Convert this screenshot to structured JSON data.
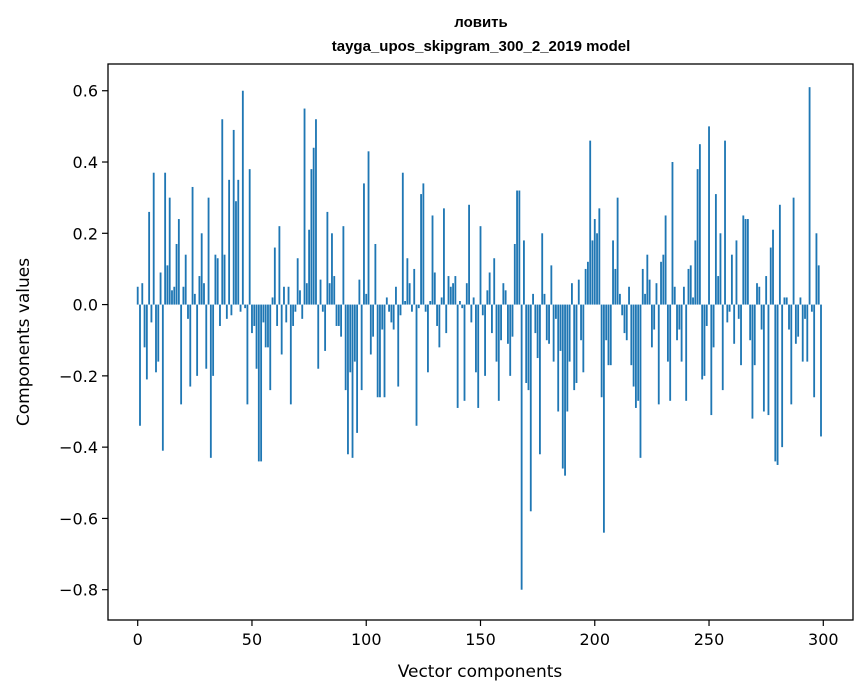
{
  "chart_data": {
    "type": "bar",
    "title": "ловить",
    "subtitle": "tayga_upos_skipgram_300_2_2019 model",
    "xlabel": "Vector components",
    "ylabel": "Components values",
    "xlim": [
      -13,
      313
    ],
    "ylim": [
      -0.885,
      0.675
    ],
    "xticks": [
      0,
      50,
      100,
      150,
      200,
      250,
      300
    ],
    "xtick_labels": [
      "0",
      "50",
      "100",
      "150",
      "200",
      "250",
      "300"
    ],
    "yticks": [
      0.6,
      0.4,
      0.2,
      0.0,
      -0.2,
      -0.4,
      -0.6,
      -0.8
    ],
    "ytick_labels": [
      "0.6",
      "0.4",
      "0.2",
      "0.0",
      "−0.2",
      "−0.4",
      "−0.6",
      "−0.8"
    ],
    "bar_color": "#1f77b4",
    "grid": false,
    "values": [
      0.05,
      -0.34,
      0.06,
      -0.12,
      -0.21,
      0.26,
      -0.05,
      0.37,
      -0.19,
      -0.16,
      0.09,
      -0.41,
      0.37,
      0.11,
      0.3,
      0.04,
      0.05,
      0.17,
      0.24,
      -0.28,
      0.05,
      0.14,
      -0.04,
      -0.23,
      0.33,
      0.03,
      -0.2,
      0.08,
      0.2,
      0.06,
      -0.18,
      0.3,
      -0.43,
      -0.2,
      0.14,
      0.13,
      -0.06,
      0.52,
      0.14,
      -0.04,
      0.35,
      -0.03,
      0.49,
      0.29,
      0.35,
      -0.02,
      0.6,
      -0.01,
      -0.28,
      0.38,
      -0.08,
      -0.06,
      -0.18,
      -0.44,
      -0.44,
      -0.05,
      -0.12,
      -0.12,
      -0.24,
      0.02,
      0.16,
      -0.06,
      0.22,
      -0.14,
      0.05,
      -0.05,
      0.05,
      -0.28,
      -0.06,
      -0.02,
      0.13,
      0.04,
      -0.04,
      0.55,
      0.06,
      0.21,
      0.38,
      0.44,
      0.52,
      -0.18,
      0.07,
      -0.02,
      -0.13,
      0.26,
      0.06,
      0.2,
      0.08,
      -0.06,
      -0.06,
      -0.09,
      0.22,
      -0.24,
      -0.42,
      -0.19,
      -0.43,
      -0.16,
      -0.36,
      0.07,
      -0.24,
      0.34,
      0.03,
      0.43,
      -0.14,
      -0.09,
      0.17,
      -0.26,
      -0.26,
      -0.07,
      -0.26,
      0.02,
      -0.02,
      -0.05,
      -0.07,
      0.05,
      -0.23,
      -0.03,
      0.37,
      0.01,
      0.13,
      0.06,
      -0.02,
      0.1,
      -0.34,
      -0.01,
      0.31,
      0.34,
      -0.02,
      -0.19,
      0.01,
      0.25,
      0.09,
      -0.06,
      -0.12,
      0.02,
      0.27,
      -0.08,
      0.08,
      0.05,
      0.06,
      0.08,
      -0.29,
      0.01,
      -0.01,
      -0.27,
      0.06,
      0.28,
      -0.05,
      0.02,
      -0.19,
      -0.29,
      0.22,
      -0.03,
      -0.2,
      0.04,
      0.09,
      -0.08,
      0.13,
      -0.16,
      -0.27,
      -0.1,
      0.06,
      0.04,
      -0.11,
      -0.2,
      -0.09,
      0.17,
      0.32,
      0.32,
      -0.8,
      0.18,
      -0.22,
      -0.24,
      -0.58,
      0.03,
      -0.08,
      -0.15,
      -0.42,
      0.2,
      0.03,
      -0.1,
      -0.11,
      0.11,
      -0.16,
      -0.04,
      -0.3,
      -0.13,
      -0.46,
      -0.48,
      -0.3,
      -0.16,
      0.06,
      -0.24,
      -0.22,
      0.07,
      -0.1,
      -0.19,
      0.1,
      0.12,
      0.46,
      0.18,
      0.24,
      0.2,
      0.27,
      -0.26,
      -0.64,
      -0.1,
      -0.17,
      -0.17,
      0.18,
      0.1,
      0.3,
      0.03,
      -0.03,
      -0.08,
      -0.1,
      0.05,
      -0.17,
      -0.23,
      -0.29,
      -0.27,
      -0.43,
      0.1,
      0.03,
      0.14,
      0.07,
      -0.12,
      -0.07,
      0.06,
      -0.28,
      0.12,
      0.14,
      0.25,
      -0.16,
      -0.27,
      0.4,
      0.05,
      -0.1,
      -0.07,
      -0.16,
      0.05,
      -0.27,
      0.1,
      0.11,
      0.02,
      0.18,
      0.38,
      0.45,
      -0.21,
      -0.2,
      -0.06,
      0.5,
      -0.31,
      -0.12,
      0.31,
      0.08,
      0.2,
      -0.24,
      0.46,
      -0.05,
      -0.02,
      0.14,
      -0.11,
      0.18,
      -0.04,
      -0.17,
      0.25,
      0.24,
      0.24,
      -0.1,
      -0.32,
      -0.17,
      0.06,
      0.05,
      -0.07,
      -0.3,
      0.08,
      -0.31,
      0.16,
      0.21,
      -0.44,
      -0.45,
      0.28,
      -0.4,
      0.02,
      0.02,
      -0.07,
      -0.28,
      0.3,
      -0.11,
      -0.09,
      0.02,
      -0.16,
      -0.04,
      -0.16,
      0.61,
      -0.02,
      -0.26,
      0.2,
      0.11,
      -0.37
    ]
  }
}
